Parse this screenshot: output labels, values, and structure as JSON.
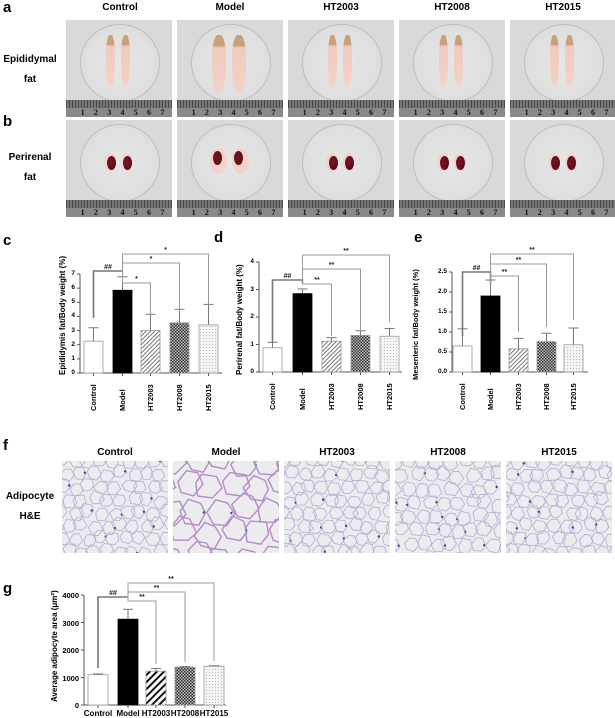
{
  "groups": [
    "Control",
    "Model",
    "HT2003",
    "HT2008",
    "HT2015"
  ],
  "panel_a": {
    "letter": "a",
    "row_label_line1": "Epididymal",
    "row_label_line2": "fat",
    "ruler_numbers": [
      "1",
      "2",
      "3",
      "4",
      "5",
      "6",
      "7"
    ]
  },
  "panel_b": {
    "letter": "b",
    "row_label_line1": "Perirenal",
    "row_label_line2": "fat"
  },
  "panel_f": {
    "letter": "f",
    "row_label_line1": "Adipocyte",
    "row_label_line2": "H&E"
  },
  "colors": {
    "control_fill": "#ffffff",
    "model_fill": "#000000",
    "axis": "#555555",
    "bracket": "#888888"
  },
  "chart_data": [
    {
      "panel": "c",
      "type": "bar",
      "title": "",
      "categories": [
        "Control",
        "Model",
        "HT2003",
        "HT2008",
        "HT2015"
      ],
      "values": [
        2.25,
        5.85,
        3.0,
        3.55,
        3.4
      ],
      "error_upper": [
        3.2,
        6.8,
        4.15,
        4.5,
        4.85
      ],
      "xlabel": "",
      "ylabel": "Epididymis fat/Body weight (%)",
      "ylim": [
        0,
        7
      ],
      "yticks": [
        "0",
        "1",
        "2",
        "3",
        "4",
        "5",
        "6",
        "7"
      ],
      "grid": false,
      "significance": [
        {
          "from": "Control",
          "to": "Model",
          "label": "##"
        },
        {
          "from": "Model",
          "to": "HT2003",
          "label": "*"
        },
        {
          "from": "Model",
          "to": "HT2008",
          "label": "*"
        },
        {
          "from": "Model",
          "to": "HT2015",
          "label": "*"
        }
      ]
    },
    {
      "panel": "d",
      "type": "bar",
      "title": "",
      "categories": [
        "Control",
        "Model",
        "HT2003",
        "HT2008",
        "HT2015"
      ],
      "values": [
        0.88,
        2.85,
        1.12,
        1.33,
        1.3
      ],
      "error_upper": [
        1.08,
        3.02,
        1.25,
        1.5,
        1.58
      ],
      "xlabel": "",
      "ylabel": "Perirenal fat/Body weight (%)",
      "ylim": [
        0,
        4
      ],
      "yticks": [
        "0",
        "1",
        "2",
        "3",
        "4"
      ],
      "grid": false,
      "significance": [
        {
          "from": "Control",
          "to": "Model",
          "label": "##"
        },
        {
          "from": "Model",
          "to": "HT2003",
          "label": "**"
        },
        {
          "from": "Model",
          "to": "HT2008",
          "label": "**"
        },
        {
          "from": "Model",
          "to": "HT2015",
          "label": "**"
        }
      ]
    },
    {
      "panel": "e",
      "type": "bar",
      "title": "",
      "categories": [
        "Control",
        "Model",
        "HT2003",
        "HT2008",
        "HT2015"
      ],
      "values": [
        0.65,
        1.9,
        0.58,
        0.76,
        0.68
      ],
      "error_upper": [
        1.08,
        2.3,
        0.84,
        0.97,
        1.1
      ],
      "xlabel": "",
      "ylabel": "Mesenteric fat/Body weight (%)",
      "ylim": [
        0,
        2.5
      ],
      "yticks": [
        "0.0",
        "0.5",
        "1.0",
        "1.5",
        "2.0",
        "2.5"
      ],
      "grid": false,
      "significance": [
        {
          "from": "Control",
          "to": "Model",
          "label": "##"
        },
        {
          "from": "Model",
          "to": "HT2003",
          "label": "**"
        },
        {
          "from": "Model",
          "to": "HT2008",
          "label": "**"
        },
        {
          "from": "Model",
          "to": "HT2015",
          "label": "**"
        }
      ]
    },
    {
      "panel": "g",
      "type": "bar",
      "title": "",
      "categories": [
        "Control",
        "Model",
        "HT2003",
        "HT2008",
        "HT2015"
      ],
      "values": [
        1100,
        3120,
        1230,
        1380,
        1410
      ],
      "error_upper": [
        1130,
        3480,
        1330,
        1400,
        1430
      ],
      "xlabel": "",
      "ylabel": "Average adipocyte area (μm²)",
      "ylim": [
        0,
        4000
      ],
      "yticks": [
        "0",
        "1000",
        "2000",
        "3000",
        "4000"
      ],
      "grid": false,
      "significance": [
        {
          "from": "Control",
          "to": "Model",
          "label": "##"
        },
        {
          "from": "Model",
          "to": "HT2003",
          "label": "**"
        },
        {
          "from": "Model",
          "to": "HT2008",
          "label": "**"
        },
        {
          "from": "Model",
          "to": "HT2015",
          "label": "**"
        }
      ]
    }
  ]
}
